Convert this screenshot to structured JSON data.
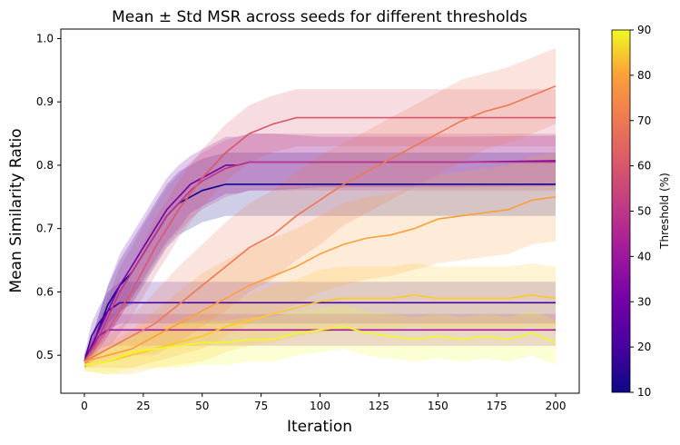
{
  "chart_data": {
    "type": "line",
    "title": "Mean ± Std MSR across seeds for different thresholds",
    "xlabel": "Iteration",
    "ylabel": "Mean Similarity Ratio",
    "xlim": [
      -10,
      210
    ],
    "ylim": [
      0.44,
      1.015
    ],
    "xticks": [
      0,
      25,
      50,
      75,
      100,
      125,
      150,
      175,
      200
    ],
    "yticks": [
      0.5,
      0.6,
      0.7,
      0.8,
      0.9,
      1.0
    ],
    "xtick_labels": [
      "0",
      "25",
      "50",
      "75",
      "100",
      "125",
      "150",
      "175",
      "200"
    ],
    "ytick_labels": [
      "0.5",
      "0.6",
      "0.7",
      "0.8",
      "0.9",
      "1.0"
    ],
    "grid": false,
    "legend": "none",
    "band": "mean ± std (shaded)",
    "colorbar": {
      "label": "Threshold (%)",
      "range": [
        10,
        90
      ],
      "ticks": [
        10,
        20,
        30,
        40,
        50,
        60,
        70,
        80,
        90
      ],
      "tick_labels": [
        "10",
        "20",
        "30",
        "40",
        "50",
        "60",
        "70",
        "80",
        "90"
      ],
      "colormap": "plasma"
    },
    "series": [
      {
        "threshold": 10,
        "color": "#0d0887",
        "x": [
          0,
          5,
          10,
          15,
          20,
          25,
          30,
          35,
          40,
          45,
          50,
          55,
          60,
          200
        ],
        "y": [
          0.49,
          0.53,
          0.58,
          0.61,
          0.63,
          0.66,
          0.69,
          0.72,
          0.74,
          0.75,
          0.76,
          0.765,
          0.77,
          0.77
        ],
        "std": [
          0.01,
          0.02,
          0.03,
          0.04,
          0.05,
          0.05,
          0.05,
          0.05,
          0.05,
          0.05,
          0.05,
          0.05,
          0.05,
          0.05
        ]
      },
      {
        "threshold": 20,
        "color": "#46039f",
        "x": [
          0,
          3,
          6,
          10,
          15,
          200
        ],
        "y": [
          0.49,
          0.53,
          0.55,
          0.57,
          0.583,
          0.583
        ],
        "std": [
          0.01,
          0.02,
          0.025,
          0.03,
          0.033,
          0.033
        ]
      },
      {
        "threshold": 30,
        "color": "#7201a8",
        "x": [
          0,
          5,
          10,
          15,
          20,
          25,
          30,
          35,
          40,
          45,
          50,
          55,
          60,
          65,
          70,
          80,
          100,
          120,
          140,
          160,
          180,
          200
        ],
        "y": [
          0.49,
          0.53,
          0.57,
          0.61,
          0.64,
          0.67,
          0.7,
          0.73,
          0.75,
          0.77,
          0.78,
          0.79,
          0.8,
          0.8,
          0.805,
          0.805,
          0.805,
          0.805,
          0.805,
          0.805,
          0.806,
          0.807
        ],
        "std": [
          0.01,
          0.02,
          0.04,
          0.05,
          0.05,
          0.05,
          0.05,
          0.05,
          0.05,
          0.045,
          0.045,
          0.045,
          0.045,
          0.045,
          0.045,
          0.045,
          0.04,
          0.04,
          0.04,
          0.04,
          0.04,
          0.04
        ]
      },
      {
        "threshold": 40,
        "color": "#9c179e",
        "x": [
          0,
          3,
          6,
          10,
          200
        ],
        "y": [
          0.49,
          0.51,
          0.53,
          0.54,
          0.54
        ],
        "std": [
          0.01,
          0.015,
          0.02,
          0.025,
          0.025
        ]
      },
      {
        "threshold": 50,
        "color": "#bd3786",
        "x": [
          0,
          5,
          10,
          15,
          20,
          25,
          30,
          35,
          40,
          45,
          50,
          55,
          60,
          65,
          70,
          200
        ],
        "y": [
          0.49,
          0.52,
          0.56,
          0.6,
          0.63,
          0.66,
          0.69,
          0.72,
          0.74,
          0.76,
          0.775,
          0.785,
          0.795,
          0.8,
          0.805,
          0.805
        ],
        "std": [
          0.01,
          0.02,
          0.03,
          0.04,
          0.04,
          0.045,
          0.045,
          0.045,
          0.045,
          0.045,
          0.045,
          0.045,
          0.045,
          0.045,
          0.045,
          0.045
        ]
      },
      {
        "threshold": 55,
        "color": "#d8576b",
        "x": [
          0,
          10,
          20,
          30,
          40,
          50,
          60,
          70,
          80,
          90,
          200
        ],
        "y": [
          0.49,
          0.54,
          0.6,
          0.67,
          0.73,
          0.78,
          0.82,
          0.85,
          0.865,
          0.875,
          0.875
        ],
        "std": [
          0.01,
          0.03,
          0.04,
          0.045,
          0.045,
          0.045,
          0.045,
          0.045,
          0.045,
          0.045,
          0.045
        ]
      },
      {
        "threshold": 65,
        "color": "#ed7953",
        "x": [
          0,
          10,
          20,
          30,
          40,
          50,
          60,
          70,
          80,
          90,
          100,
          110,
          120,
          130,
          140,
          150,
          160,
          170,
          180,
          190,
          200
        ],
        "y": [
          0.49,
          0.51,
          0.53,
          0.55,
          0.58,
          0.61,
          0.64,
          0.67,
          0.69,
          0.72,
          0.745,
          0.77,
          0.79,
          0.81,
          0.83,
          0.85,
          0.87,
          0.885,
          0.895,
          0.91,
          0.925
        ],
        "std": [
          0.01,
          0.02,
          0.03,
          0.05,
          0.06,
          0.065,
          0.07,
          0.07,
          0.07,
          0.07,
          0.07,
          0.065,
          0.065,
          0.065,
          0.065,
          0.065,
          0.065,
          0.06,
          0.06,
          0.06,
          0.06
        ]
      },
      {
        "threshold": 72,
        "color": "#fb9f3a",
        "x": [
          0,
          10,
          20,
          30,
          40,
          50,
          60,
          70,
          80,
          90,
          100,
          110,
          120,
          130,
          140,
          150,
          160,
          170,
          180,
          190,
          200
        ],
        "y": [
          0.49,
          0.5,
          0.51,
          0.53,
          0.55,
          0.57,
          0.59,
          0.61,
          0.625,
          0.64,
          0.66,
          0.675,
          0.685,
          0.69,
          0.7,
          0.715,
          0.72,
          0.725,
          0.73,
          0.745,
          0.75
        ],
        "std": [
          0.01,
          0.02,
          0.03,
          0.04,
          0.05,
          0.06,
          0.06,
          0.06,
          0.06,
          0.06,
          0.06,
          0.065,
          0.065,
          0.065,
          0.065,
          0.07,
          0.07,
          0.07,
          0.07,
          0.07,
          0.07
        ]
      },
      {
        "threshold": 80,
        "color": "#fdca26",
        "x": [
          0,
          10,
          20,
          30,
          40,
          50,
          60,
          70,
          80,
          90,
          100,
          110,
          120,
          130,
          140,
          150,
          160,
          170,
          180,
          190,
          200
        ],
        "y": [
          0.485,
          0.49,
          0.5,
          0.51,
          0.52,
          0.53,
          0.545,
          0.555,
          0.565,
          0.575,
          0.585,
          0.59,
          0.59,
          0.59,
          0.595,
          0.59,
          0.59,
          0.59,
          0.59,
          0.595,
          0.59
        ],
        "std": [
          0.01,
          0.02,
          0.03,
          0.03,
          0.035,
          0.04,
          0.04,
          0.04,
          0.045,
          0.045,
          0.05,
          0.05,
          0.05,
          0.05,
          0.05,
          0.05,
          0.05,
          0.05,
          0.05,
          0.05,
          0.05
        ]
      },
      {
        "threshold": 90,
        "color": "#f0f921",
        "x": [
          0,
          10,
          20,
          30,
          40,
          50,
          60,
          70,
          80,
          90,
          100,
          110,
          120,
          130,
          140,
          150,
          160,
          170,
          180,
          190,
          200
        ],
        "y": [
          0.485,
          0.49,
          0.505,
          0.51,
          0.515,
          0.52,
          0.52,
          0.525,
          0.525,
          0.535,
          0.54,
          0.545,
          0.535,
          0.53,
          0.525,
          0.53,
          0.525,
          0.53,
          0.525,
          0.535,
          0.52
        ],
        "std": [
          0.01,
          0.02,
          0.025,
          0.03,
          0.035,
          0.035,
          0.035,
          0.035,
          0.035,
          0.035,
          0.035,
          0.035,
          0.035,
          0.035,
          0.035,
          0.035,
          0.035,
          0.035,
          0.035,
          0.035,
          0.035
        ]
      }
    ]
  }
}
